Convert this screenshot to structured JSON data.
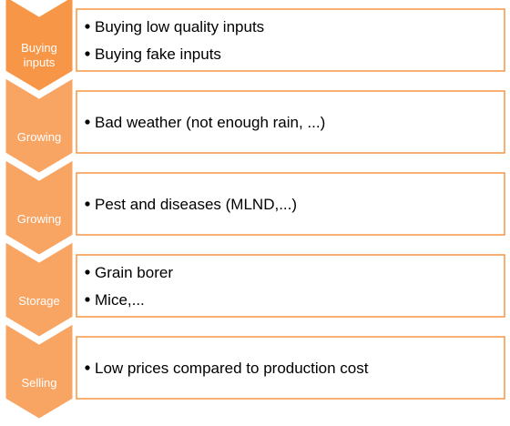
{
  "steps": [
    {
      "label": [
        "Buying",
        "inputs"
      ],
      "items": [
        "Buying low quality inputs",
        "Buying fake inputs"
      ]
    },
    {
      "label": [
        "Growing"
      ],
      "items": [
        "Bad weather (not enough rain, ...)"
      ]
    },
    {
      "label": [
        "Growing"
      ],
      "items": [
        "Pest and diseases (MLND,...)"
      ]
    },
    {
      "label": [
        "Storage"
      ],
      "items": [
        "Grain borer",
        "Mice,..."
      ]
    },
    {
      "label": [
        "Selling"
      ],
      "items": [
        "Low prices compared to production cost"
      ]
    }
  ]
}
